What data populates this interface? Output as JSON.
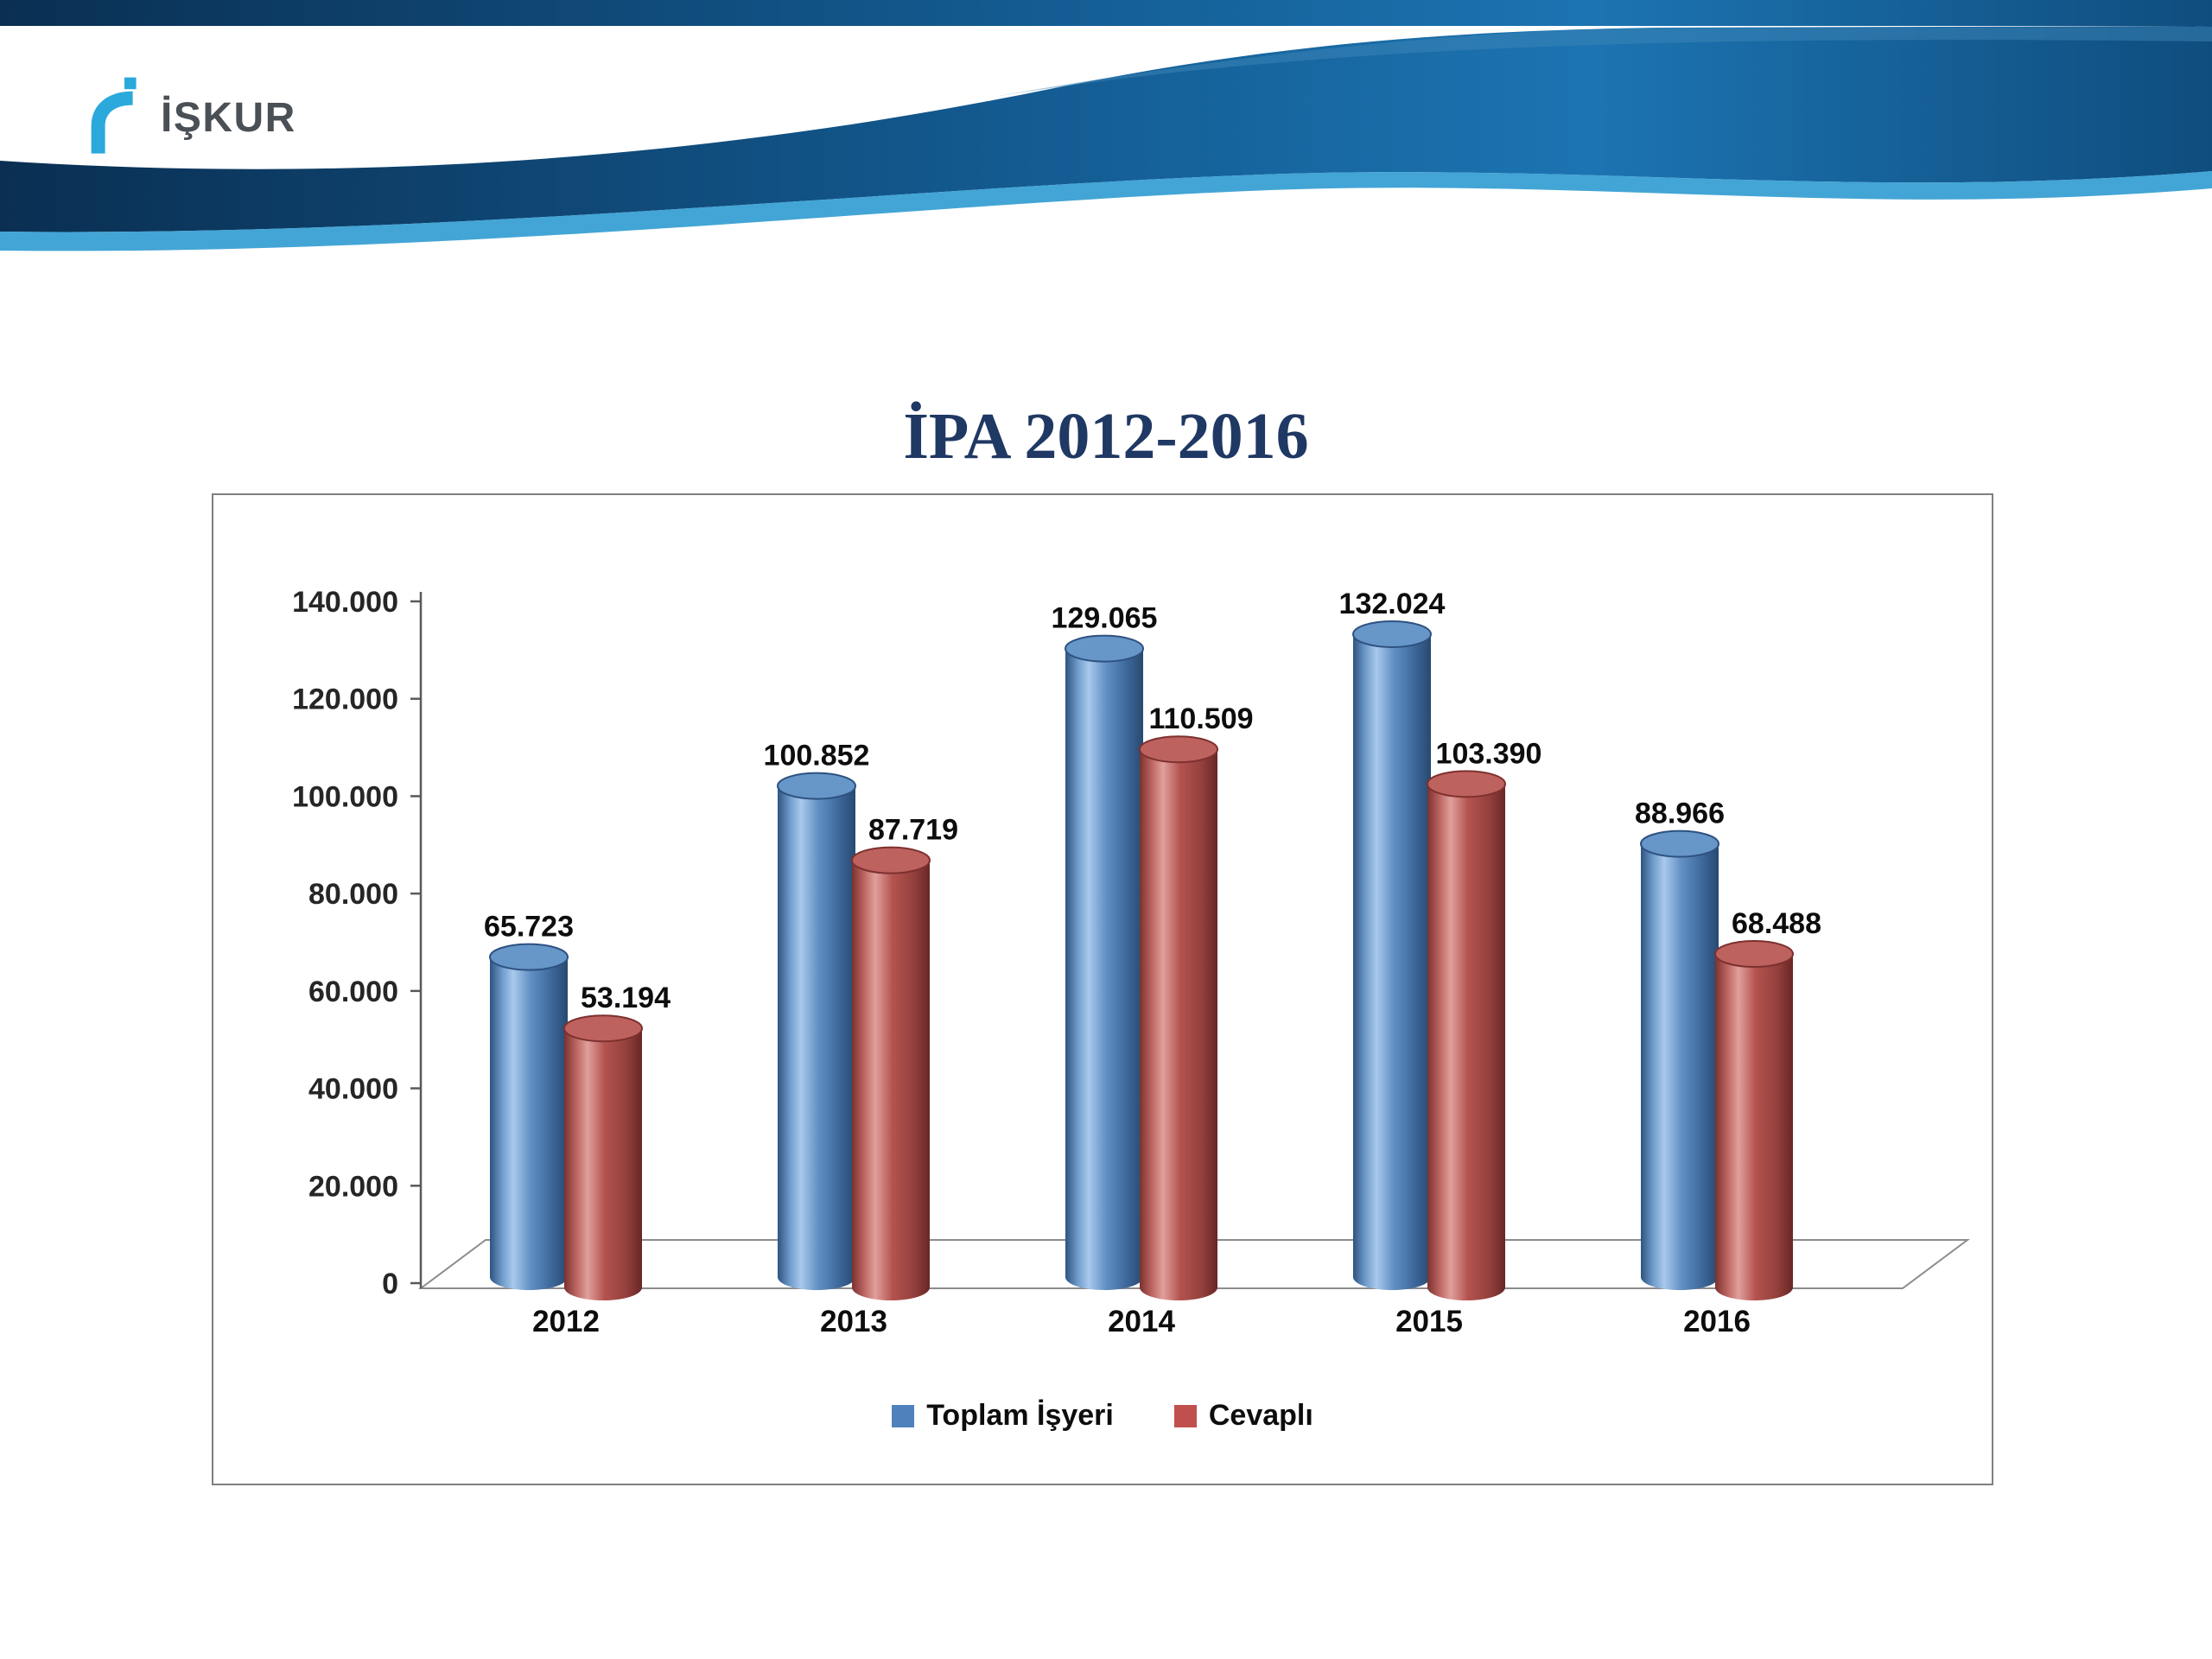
{
  "slide": {
    "logo_text": "İŞKUR",
    "title": "İPA 2012-2016"
  },
  "chart_data": {
    "type": "bar",
    "style": "3d-cylinder",
    "title": "İPA 2012-2016",
    "categories": [
      "2012",
      "2013",
      "2014",
      "2015",
      "2016"
    ],
    "series": [
      {
        "name": "Toplam İşyeri",
        "color": "#4f81bd",
        "values": [
          65723,
          100852,
          129065,
          132024,
          88966
        ],
        "labels": [
          "65.723",
          "100.852",
          "129.065",
          "132.024",
          "88.966"
        ]
      },
      {
        "name": "Cevaplı",
        "color": "#c0504d",
        "values": [
          53194,
          87719,
          110509,
          103390,
          68488
        ],
        "labels": [
          "53.194",
          "87.719",
          "110.509",
          "103.390",
          "68.488"
        ]
      }
    ],
    "y_axis": {
      "min": 0,
      "max": 140000,
      "tick_interval": 20000,
      "tick_labels": [
        "0",
        "20.000",
        "40.000",
        "60.000",
        "80.000",
        "100.000",
        "120.000",
        "140.000"
      ]
    },
    "legend": {
      "position": "bottom"
    },
    "grid": "off"
  }
}
